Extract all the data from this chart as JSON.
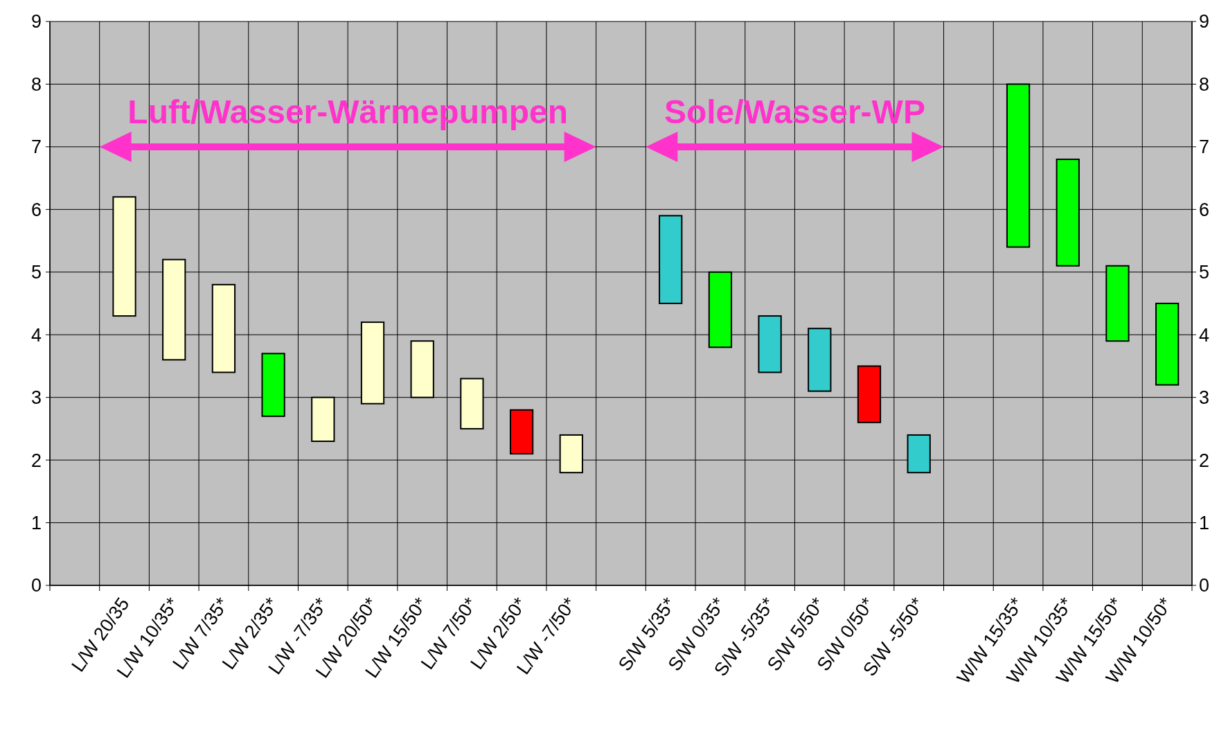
{
  "chart_data": {
    "type": "bar",
    "categories": [
      null,
      "L/W 20/35",
      "L/W 10/35*",
      "L/W 7/35*",
      "L/W 2/35*",
      "L/W -7/35*",
      "L/W 20/50*",
      "L/W 15/50*",
      "L/W 7/50*",
      "L/W 2/50*",
      "L/W -7/50*",
      null,
      "S/W 5/35*",
      "S/W 0/35*",
      "S/W -5/35*",
      "S/W 5/50*",
      "S/W 0/50*",
      "S/W -5/50*",
      null,
      "W/W 15/35*",
      "W/W 10/35*",
      "W/W 15/50*",
      "W/W 10/50*"
    ],
    "base": [
      null,
      4.3,
      3.6,
      3.4,
      2.7,
      2.3,
      2.9,
      3.0,
      2.5,
      2.1,
      1.8,
      null,
      4.5,
      3.8,
      3.4,
      3.1,
      2.6,
      1.8,
      null,
      5.4,
      5.1,
      3.9,
      3.2
    ],
    "values": [
      null,
      1.9,
      1.6,
      1.4,
      1.0,
      0.7,
      1.3,
      0.9,
      0.8,
      0.7,
      0.6,
      null,
      1.4,
      1.2,
      0.9,
      1.0,
      0.9,
      0.6,
      null,
      2.6,
      1.7,
      1.2,
      1.3
    ],
    "colors": [
      null,
      "#ffffcc",
      "#ffffcc",
      "#ffffcc",
      "#00ff00",
      "#ffffcc",
      "#ffffcc",
      "#ffffcc",
      "#ffffcc",
      "#ff0000",
      "#ffffcc",
      null,
      "#33cccc",
      "#00ff00",
      "#33cccc",
      "#33cccc",
      "#ff0000",
      "#33cccc",
      null,
      "#00ff00",
      "#00ff00",
      "#00ff00",
      "#00ff00"
    ],
    "ylim": [
      0,
      9
    ],
    "yticks": [
      0,
      1,
      2,
      3,
      4,
      5,
      6,
      7,
      8,
      9
    ],
    "y2lim": [
      0,
      9
    ],
    "y2ticks": [
      0,
      1,
      2,
      3,
      4,
      5,
      6,
      7,
      8,
      9
    ],
    "grid": true,
    "annotations": [
      "Luft/Wasser-Wärmepumpen",
      "Sole/Wasser-WP"
    ]
  }
}
